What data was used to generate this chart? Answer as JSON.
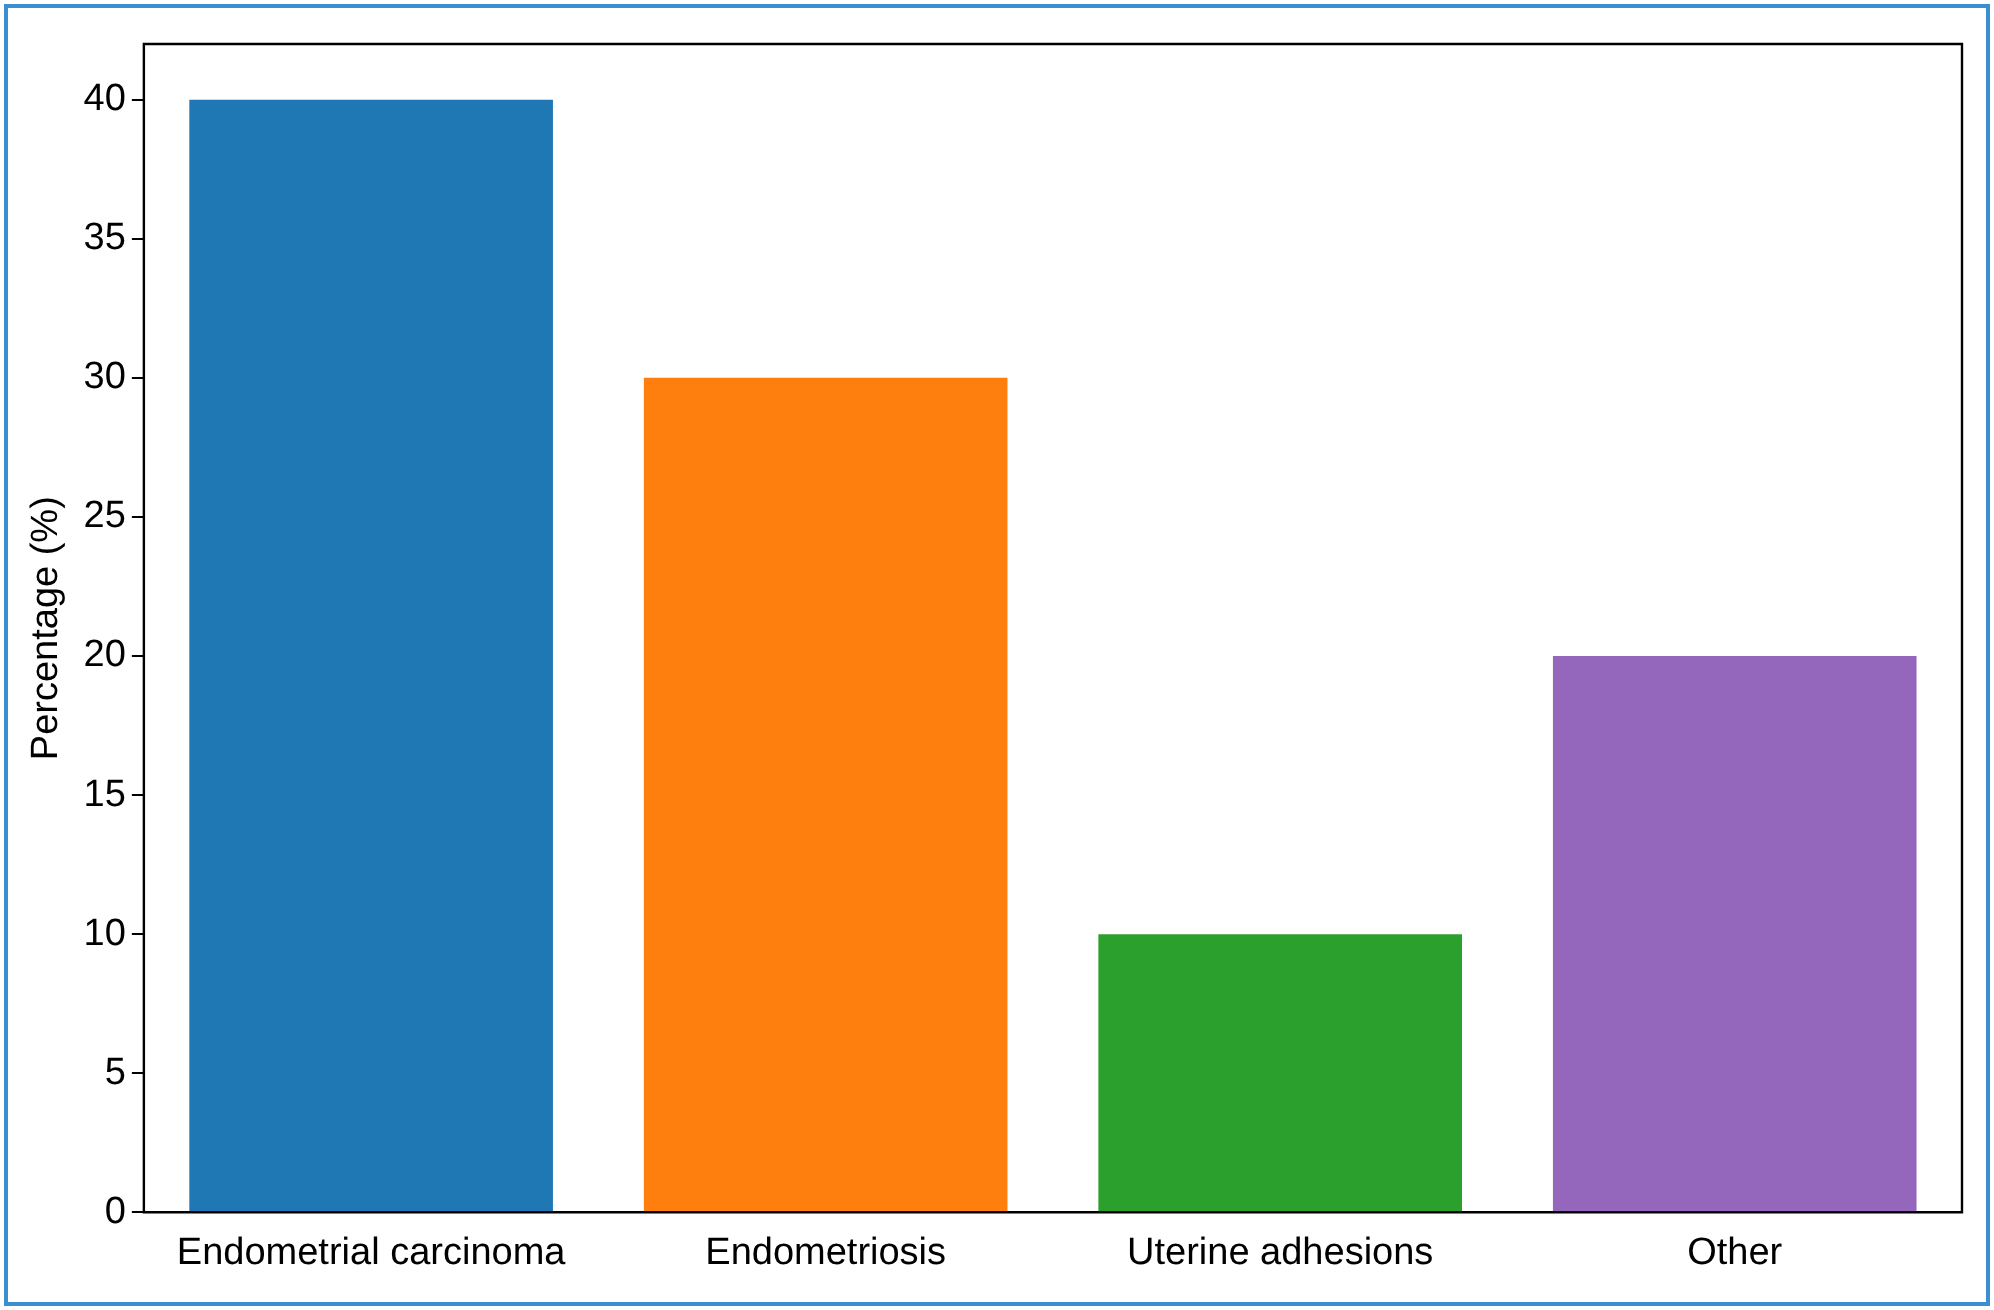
{
  "chart_data": {
    "type": "bar",
    "ylabel": "Percentage (%)",
    "categories": [
      "Endometrial carcinoma",
      "Endometriosis",
      "Uterine adhesions",
      "Other"
    ],
    "values": [
      40,
      30,
      10,
      20
    ],
    "colors": [
      "#1f77b4",
      "#ff7f0e",
      "#2ca02c",
      "#9467bd"
    ],
    "ylim": [
      0,
      42
    ],
    "yticks": [
      0,
      5,
      10,
      15,
      20,
      25,
      30,
      35,
      40
    ],
    "grid": false
  }
}
